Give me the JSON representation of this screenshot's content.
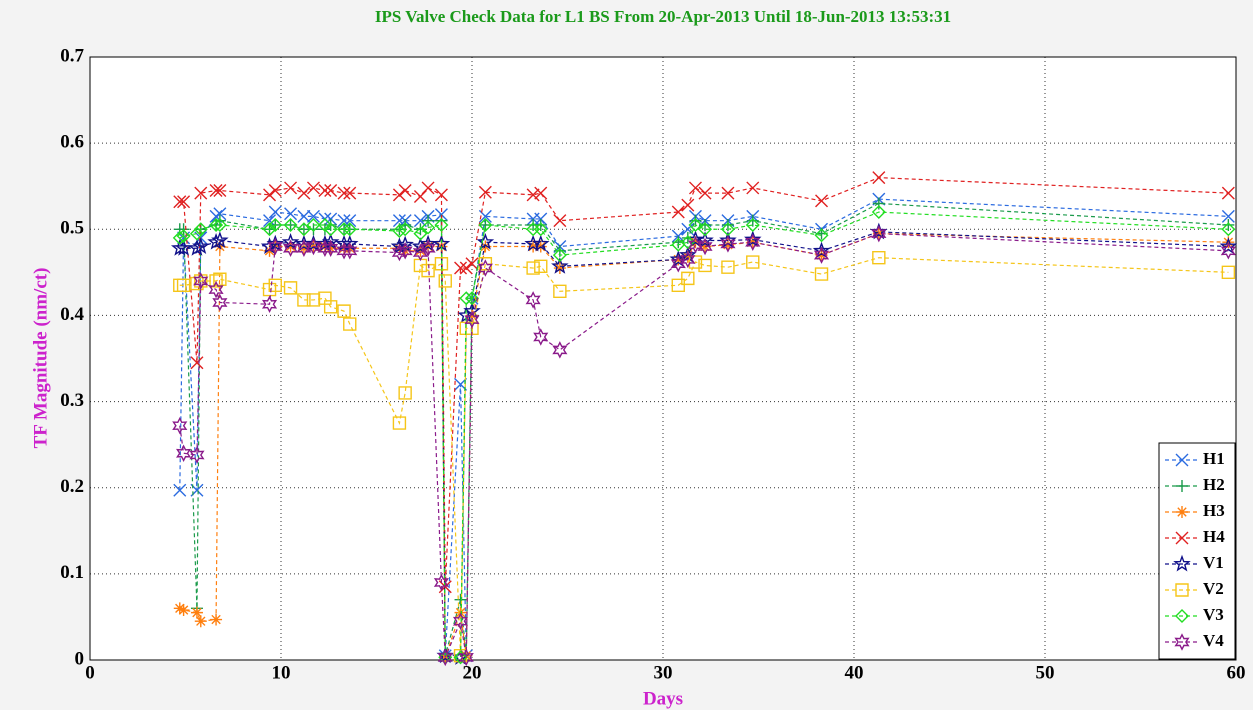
{
  "chart_data": {
    "type": "line",
    "title": "IPS Valve Check Data for L1 BS From 20-Apr-2013 Until 18-Jun-2013 13:53:31",
    "xlabel": "Days",
    "ylabel": "TF Magnitude (nm/ct)",
    "xlim": [
      0,
      60
    ],
    "ylim": [
      0,
      0.7
    ],
    "xticks": [
      0,
      10,
      20,
      30,
      40,
      50,
      60
    ],
    "yticks": [
      0,
      0.1,
      0.2,
      0.3,
      0.4,
      0.5,
      0.6,
      0.7
    ],
    "grid": true,
    "legend": "lower right",
    "x": [
      4.7,
      4.9,
      5.6,
      5.8,
      6.6,
      6.8,
      9.4,
      9.7,
      10.5,
      11.2,
      11.7,
      12.3,
      12.6,
      13.3,
      13.6,
      16.2,
      16.5,
      17.3,
      17.7,
      18.4,
      18.6,
      19.4,
      19.7,
      20.0,
      20.7,
      23.2,
      23.6,
      24.6,
      30.8,
      31.3,
      31.7,
      32.2,
      33.4,
      34.7,
      38.3,
      41.3,
      59.6
    ],
    "series": [
      {
        "name": "H1",
        "color": "#2b6be0",
        "marker": "x",
        "values": [
          0.197,
          0.49,
          0.197,
          0.49,
          0.515,
          0.518,
          0.51,
          0.52,
          0.518,
          0.515,
          0.515,
          0.512,
          0.512,
          0.51,
          0.51,
          0.51,
          0.51,
          0.51,
          0.515,
          0.517,
          0.005,
          0.32,
          0.005,
          0.42,
          0.515,
          0.512,
          0.512,
          0.48,
          0.492,
          0.5,
          0.515,
          0.51,
          0.51,
          0.515,
          0.5,
          0.535,
          0.515
        ]
      },
      {
        "name": "H2",
        "color": "#1a9a4a",
        "marker": "plus",
        "values": [
          0.5,
          0.5,
          0.06,
          0.5,
          0.505,
          0.51,
          0.5,
          0.505,
          0.505,
          0.5,
          0.5,
          0.5,
          0.505,
          0.5,
          0.5,
          0.5,
          0.505,
          0.5,
          0.51,
          0.51,
          0.005,
          0.07,
          0.005,
          0.42,
          0.505,
          0.505,
          0.505,
          0.475,
          0.485,
          0.49,
          0.51,
          0.505,
          0.505,
          0.51,
          0.495,
          0.53,
          0.505
        ]
      },
      {
        "name": "H3",
        "color": "#ff7f0e",
        "marker": "asterisk",
        "values": [
          0.06,
          0.058,
          0.055,
          0.045,
          0.047,
          0.48,
          0.475,
          0.48,
          0.48,
          0.478,
          0.48,
          0.48,
          0.478,
          0.478,
          0.478,
          0.478,
          0.475,
          0.475,
          0.48,
          0.48,
          0.003,
          0.055,
          0.005,
          0.4,
          0.48,
          0.48,
          0.48,
          0.455,
          0.465,
          0.468,
          0.485,
          0.48,
          0.482,
          0.485,
          0.47,
          0.495,
          0.485
        ]
      },
      {
        "name": "H4",
        "color": "#e02020",
        "marker": "x",
        "values": [
          0.532,
          0.532,
          0.345,
          0.542,
          0.545,
          0.545,
          0.54,
          0.545,
          0.548,
          0.542,
          0.548,
          0.545,
          0.545,
          0.542,
          0.542,
          0.54,
          0.545,
          0.538,
          0.548,
          0.54,
          0.085,
          0.455,
          0.455,
          0.46,
          0.543,
          0.54,
          0.542,
          0.51,
          0.52,
          0.528,
          0.548,
          0.542,
          0.542,
          0.548,
          0.533,
          0.56,
          0.542
        ]
      },
      {
        "name": "V1",
        "color": "#10108a",
        "marker": "star",
        "values": [
          0.478,
          0.478,
          0.478,
          0.48,
          0.485,
          0.487,
          0.48,
          0.483,
          0.485,
          0.483,
          0.483,
          0.483,
          0.485,
          0.483,
          0.483,
          0.48,
          0.482,
          0.48,
          0.483,
          0.483,
          0.005,
          0.003,
          0.4,
          0.405,
          0.485,
          0.483,
          0.483,
          0.457,
          0.465,
          0.47,
          0.488,
          0.487,
          0.487,
          0.488,
          0.475,
          0.497,
          0.48
        ]
      },
      {
        "name": "V2",
        "color": "#f5c518",
        "marker": "square",
        "values": [
          0.435,
          0.435,
          0.437,
          0.44,
          0.44,
          0.442,
          0.43,
          0.435,
          0.432,
          0.418,
          0.418,
          0.42,
          0.41,
          0.405,
          0.39,
          0.275,
          0.31,
          0.458,
          0.452,
          0.46,
          0.44,
          0.005,
          0.385,
          0.385,
          0.46,
          0.455,
          0.457,
          0.428,
          0.435,
          0.443,
          0.462,
          0.458,
          0.456,
          0.462,
          0.448,
          0.467,
          0.45
        ]
      },
      {
        "name": "V3",
        "color": "#22dd22",
        "marker": "diamond",
        "values": [
          0.49,
          0.492,
          0.495,
          0.5,
          0.505,
          0.505,
          0.5,
          0.505,
          0.505,
          0.5,
          0.505,
          0.505,
          0.5,
          0.5,
          0.5,
          0.498,
          0.5,
          0.495,
          0.502,
          0.505,
          0.003,
          0.003,
          0.42,
          0.42,
          0.505,
          0.5,
          0.5,
          0.47,
          0.482,
          0.485,
          0.505,
          0.5,
          0.5,
          0.505,
          0.493,
          0.52,
          0.5
        ]
      },
      {
        "name": "V4",
        "color": "#8a1a8a",
        "marker": "hexagram",
        "values": [
          0.272,
          0.24,
          0.238,
          0.44,
          0.43,
          0.415,
          0.413,
          0.48,
          0.478,
          0.478,
          0.48,
          0.478,
          0.478,
          0.475,
          0.475,
          0.473,
          0.475,
          0.473,
          0.478,
          0.09,
          0.003,
          0.045,
          0.003,
          0.395,
          0.455,
          0.418,
          0.375,
          0.36,
          0.46,
          0.465,
          0.482,
          0.48,
          0.483,
          0.485,
          0.47,
          0.495,
          0.475
        ]
      }
    ]
  }
}
